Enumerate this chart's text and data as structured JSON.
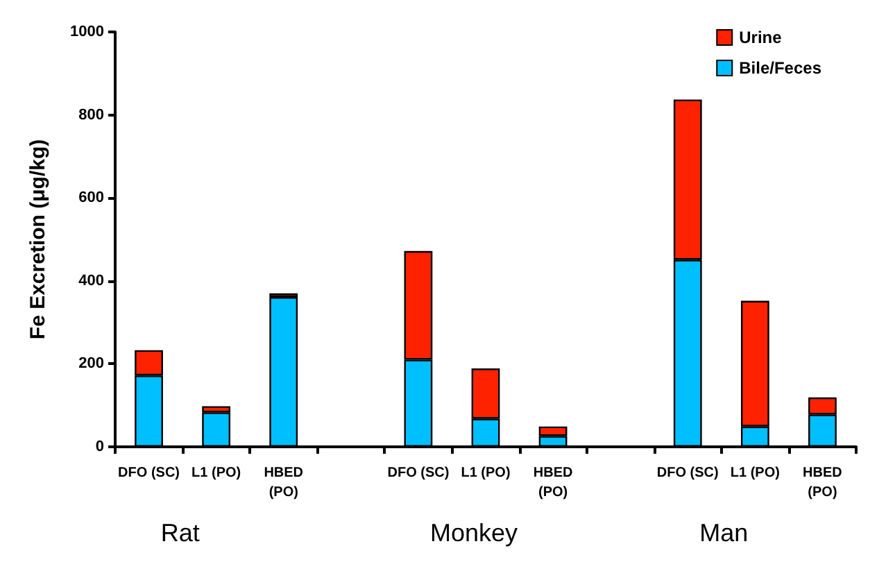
{
  "chart_data": {
    "type": "bar",
    "stacked": true,
    "ylabel": "Fe Excretion (μg/kg)",
    "categories": [
      "DFO (SC)",
      "L1 (PO)",
      "HBED\n(PO)",
      null,
      "DFO (SC)",
      "L1 (PO)",
      "HBED\n(PO)",
      null,
      "DFO (SC)",
      "L1 (PO)",
      "HBED\n(PO)"
    ],
    "series": [
      {
        "name": "Bile/Feces",
        "color": "#00bfff",
        "values": [
          172,
          83,
          361,
          null,
          210,
          68,
          26,
          null,
          451,
          49,
          78
        ]
      },
      {
        "name": "Urine",
        "color": "#ff2200",
        "values": [
          61,
          15,
          9,
          null,
          262,
          121,
          23,
          null,
          386,
          303,
          41
        ]
      }
    ],
    "ylim": [
      0,
      1000
    ],
    "yticks": [
      0,
      200,
      400,
      600,
      800,
      1000
    ],
    "grid": false,
    "legend": "top right",
    "annotations": [
      "Rat",
      "Monkey",
      "Man"
    ]
  }
}
